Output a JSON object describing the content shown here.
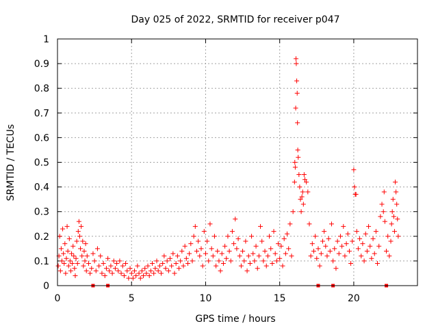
{
  "chart_data": {
    "type": "scatter",
    "title": "Day 025 of 2022, SRMTID for receiver p047",
    "xlabel": "GPS time / hours",
    "ylabel": "SRMTID / TECUs",
    "xlim": [
      0,
      24.3
    ],
    "ylim": [
      0,
      1
    ],
    "xticks": [
      0,
      5,
      10,
      15,
      20
    ],
    "yticks": [
      0,
      0.1,
      0.2,
      0.3,
      0.4,
      0.5,
      0.6,
      0.7,
      0.8,
      0.9,
      1
    ],
    "xtick_labels": [
      "0",
      "5",
      "10",
      "15",
      "20"
    ],
    "ytick_labels": [
      "0",
      "0.1",
      "0.2",
      "0.3",
      "0.4",
      "0.5",
      "0.6",
      "0.7",
      "0.8",
      "0.9",
      "1"
    ],
    "grid": true,
    "marker": "+",
    "color": "#ff0000",
    "baseline_markers_x": [
      2.4,
      3.4,
      17.6,
      18.6,
      22.2
    ],
    "series": [
      {
        "name": "SRMTID",
        "points": [
          [
            0.05,
            0.08
          ],
          [
            0.1,
            0.12
          ],
          [
            0.15,
            0.2
          ],
          [
            0.2,
            0.06
          ],
          [
            0.25,
            0.15
          ],
          [
            0.3,
            0.1
          ],
          [
            0.35,
            0.23
          ],
          [
            0.4,
            0.13
          ],
          [
            0.45,
            0.09
          ],
          [
            0.5,
            0.17
          ],
          [
            0.55,
            0.05
          ],
          [
            0.6,
            0.11
          ],
          [
            0.65,
            0.24
          ],
          [
            0.7,
            0.14
          ],
          [
            0.75,
            0.08
          ],
          [
            0.8,
            0.19
          ],
          [
            0.85,
            0.1
          ],
          [
            0.9,
            0.06
          ],
          [
            0.95,
            0.13
          ],
          [
            1.0,
            0.09
          ],
          [
            1.05,
            0.16
          ],
          [
            1.1,
            0.12
          ],
          [
            1.15,
            0.07
          ],
          [
            1.2,
            0.04
          ],
          [
            1.25,
            0.11
          ],
          [
            1.3,
            0.18
          ],
          [
            1.35,
            0.09
          ],
          [
            1.4,
            0.22
          ],
          [
            1.45,
            0.26
          ],
          [
            1.5,
            0.2
          ],
          [
            1.55,
            0.15
          ],
          [
            1.6,
            0.24
          ],
          [
            1.65,
            0.12
          ],
          [
            1.7,
            0.18
          ],
          [
            1.75,
            0.08
          ],
          [
            1.8,
            0.14
          ],
          [
            1.85,
            0.1
          ],
          [
            1.9,
            0.17
          ],
          [
            1.95,
            0.06
          ],
          [
            2.0,
            0.12
          ],
          [
            2.1,
            0.09
          ],
          [
            2.2,
            0.05
          ],
          [
            2.3,
            0.07
          ],
          [
            2.4,
            0.13
          ],
          [
            2.5,
            0.1
          ],
          [
            2.6,
            0.06
          ],
          [
            2.7,
            0.15
          ],
          [
            2.8,
            0.08
          ],
          [
            2.9,
            0.12
          ],
          [
            3.0,
            0.05
          ],
          [
            3.1,
            0.09
          ],
          [
            3.2,
            0.04
          ],
          [
            3.3,
            0.07
          ],
          [
            3.4,
            0.11
          ],
          [
            3.5,
            0.06
          ],
          [
            3.6,
            0.08
          ],
          [
            3.7,
            0.05
          ],
          [
            3.8,
            0.1
          ],
          [
            3.9,
            0.07
          ],
          [
            4.0,
            0.09
          ],
          [
            4.1,
            0.06
          ],
          [
            4.2,
            0.1
          ],
          [
            4.3,
            0.05
          ],
          [
            4.4,
            0.08
          ],
          [
            4.5,
            0.04
          ],
          [
            4.6,
            0.09
          ],
          [
            4.7,
            0.06
          ],
          [
            4.8,
            0.03
          ],
          [
            4.9,
            0.07
          ],
          [
            5.0,
            0.05
          ],
          [
            5.1,
            0.03
          ],
          [
            5.2,
            0.06
          ],
          [
            5.3,
            0.04
          ],
          [
            5.4,
            0.08
          ],
          [
            5.5,
            0.05
          ],
          [
            5.6,
            0.03
          ],
          [
            5.7,
            0.06
          ],
          [
            5.8,
            0.04
          ],
          [
            5.9,
            0.07
          ],
          [
            6.0,
            0.05
          ],
          [
            6.1,
            0.08
          ],
          [
            6.2,
            0.04
          ],
          [
            6.3,
            0.06
          ],
          [
            6.4,
            0.09
          ],
          [
            6.5,
            0.05
          ],
          [
            6.6,
            0.07
          ],
          [
            6.7,
            0.1
          ],
          [
            6.8,
            0.06
          ],
          [
            6.9,
            0.08
          ],
          [
            7.0,
            0.05
          ],
          [
            7.1,
            0.09
          ],
          [
            7.2,
            0.12
          ],
          [
            7.3,
            0.07
          ],
          [
            7.4,
            0.1
          ],
          [
            7.5,
            0.06
          ],
          [
            7.6,
            0.11
          ],
          [
            7.7,
            0.08
          ],
          [
            7.8,
            0.13
          ],
          [
            7.9,
            0.05
          ],
          [
            8.0,
            0.09
          ],
          [
            8.1,
            0.12
          ],
          [
            8.2,
            0.07
          ],
          [
            8.3,
            0.1
          ],
          [
            8.4,
            0.14
          ],
          [
            8.5,
            0.08
          ],
          [
            8.6,
            0.16
          ],
          [
            8.7,
            0.11
          ],
          [
            8.8,
            0.09
          ],
          [
            8.9,
            0.13
          ],
          [
            9.0,
            0.17
          ],
          [
            9.1,
            0.1
          ],
          [
            9.2,
            0.2
          ],
          [
            9.3,
            0.24
          ],
          [
            9.4,
            0.14
          ],
          [
            9.5,
            0.18
          ],
          [
            9.6,
            0.12
          ],
          [
            9.7,
            0.15
          ],
          [
            9.8,
            0.08
          ],
          [
            9.9,
            0.22
          ],
          [
            10.0,
            0.13
          ],
          [
            10.1,
            0.18
          ],
          [
            10.2,
            0.1
          ],
          [
            10.3,
            0.25
          ],
          [
            10.4,
            0.15
          ],
          [
            10.5,
            0.12
          ],
          [
            10.6,
            0.2
          ],
          [
            10.7,
            0.08
          ],
          [
            10.8,
            0.14
          ],
          [
            10.9,
            0.1
          ],
          [
            11.0,
            0.06
          ],
          [
            11.1,
            0.13
          ],
          [
            11.2,
            0.09
          ],
          [
            11.3,
            0.16
          ],
          [
            11.4,
            0.11
          ],
          [
            11.5,
            0.2
          ],
          [
            11.6,
            0.14
          ],
          [
            11.7,
            0.1
          ],
          [
            11.8,
            0.22
          ],
          [
            11.9,
            0.17
          ],
          [
            12.0,
            0.27
          ],
          [
            12.1,
            0.15
          ],
          [
            12.2,
            0.19
          ],
          [
            12.3,
            0.12
          ],
          [
            12.4,
            0.08
          ],
          [
            12.5,
            0.14
          ],
          [
            12.6,
            0.1
          ],
          [
            12.7,
            0.18
          ],
          [
            12.8,
            0.06
          ],
          [
            12.9,
            0.12
          ],
          [
            13.0,
            0.09
          ],
          [
            13.1,
            0.2
          ],
          [
            13.2,
            0.13
          ],
          [
            13.3,
            0.1
          ],
          [
            13.4,
            0.16
          ],
          [
            13.5,
            0.07
          ],
          [
            13.6,
            0.12
          ],
          [
            13.7,
            0.24
          ],
          [
            13.8,
            0.18
          ],
          [
            13.9,
            0.1
          ],
          [
            14.0,
            0.14
          ],
          [
            14.1,
            0.08
          ],
          [
            14.2,
            0.12
          ],
          [
            14.3,
            0.2
          ],
          [
            14.4,
            0.15
          ],
          [
            14.5,
            0.09
          ],
          [
            14.6,
            0.22
          ],
          [
            14.7,
            0.13
          ],
          [
            14.8,
            0.1
          ],
          [
            14.9,
            0.17
          ],
          [
            15.0,
            0.11
          ],
          [
            15.1,
            0.16
          ],
          [
            15.2,
            0.08
          ],
          [
            15.3,
            0.19
          ],
          [
            15.4,
            0.13
          ],
          [
            15.5,
            0.21
          ],
          [
            15.6,
            0.15
          ],
          [
            15.7,
            0.25
          ],
          [
            15.8,
            0.12
          ],
          [
            15.9,
            0.3
          ],
          [
            16.0,
            0.42
          ],
          [
            16.02,
            0.5
          ],
          [
            16.05,
            0.48
          ],
          [
            16.08,
            0.72
          ],
          [
            16.1,
            0.92
          ],
          [
            16.12,
            0.9
          ],
          [
            16.15,
            0.83
          ],
          [
            16.18,
            0.78
          ],
          [
            16.2,
            0.66
          ],
          [
            16.22,
            0.55
          ],
          [
            16.25,
            0.52
          ],
          [
            16.3,
            0.45
          ],
          [
            16.35,
            0.4
          ],
          [
            16.4,
            0.35
          ],
          [
            16.45,
            0.3
          ],
          [
            16.5,
            0.36
          ],
          [
            16.55,
            0.38
          ],
          [
            16.6,
            0.33
          ],
          [
            16.65,
            0.45
          ],
          [
            16.7,
            0.43
          ],
          [
            16.8,
            0.42
          ],
          [
            16.9,
            0.38
          ],
          [
            17.0,
            0.25
          ],
          [
            17.1,
            0.12
          ],
          [
            17.2,
            0.17
          ],
          [
            17.3,
            0.14
          ],
          [
            17.4,
            0.2
          ],
          [
            17.5,
            0.11
          ],
          [
            17.6,
            0.15
          ],
          [
            17.7,
            0.08
          ],
          [
            17.8,
            0.13
          ],
          [
            17.9,
            0.18
          ],
          [
            18.0,
            0.22
          ],
          [
            18.1,
            0.16
          ],
          [
            18.2,
            0.12
          ],
          [
            18.3,
            0.19
          ],
          [
            18.4,
            0.14
          ],
          [
            18.5,
            0.25
          ],
          [
            18.6,
            0.1
          ],
          [
            18.7,
            0.15
          ],
          [
            18.8,
            0.07
          ],
          [
            18.9,
            0.18
          ],
          [
            19.0,
            0.13
          ],
          [
            19.1,
            0.2
          ],
          [
            19.2,
            0.16
          ],
          [
            19.3,
            0.24
          ],
          [
            19.4,
            0.12
          ],
          [
            19.5,
            0.17
          ],
          [
            19.6,
            0.21
          ],
          [
            19.7,
            0.14
          ],
          [
            19.8,
            0.09
          ],
          [
            19.9,
            0.18
          ],
          [
            20.0,
            0.47
          ],
          [
            20.05,
            0.4
          ],
          [
            20.1,
            0.37
          ],
          [
            20.15,
            0.37
          ],
          [
            20.2,
            0.22
          ],
          [
            20.3,
            0.15
          ],
          [
            20.4,
            0.19
          ],
          [
            20.5,
            0.12
          ],
          [
            20.6,
            0.17
          ],
          [
            20.7,
            0.1
          ],
          [
            20.8,
            0.21
          ],
          [
            20.9,
            0.14
          ],
          [
            21.0,
            0.24
          ],
          [
            21.1,
            0.16
          ],
          [
            21.2,
            0.11
          ],
          [
            21.3,
            0.19
          ],
          [
            21.4,
            0.13
          ],
          [
            21.5,
            0.22
          ],
          [
            21.6,
            0.09
          ],
          [
            21.7,
            0.16
          ],
          [
            21.8,
            0.28
          ],
          [
            21.9,
            0.33
          ],
          [
            22.0,
            0.3
          ],
          [
            22.05,
            0.38
          ],
          [
            22.1,
            0.26
          ],
          [
            22.2,
            0.14
          ],
          [
            22.3,
            0.2
          ],
          [
            22.4,
            0.12
          ],
          [
            22.5,
            0.18
          ],
          [
            22.55,
            0.25
          ],
          [
            22.6,
            0.3
          ],
          [
            22.65,
            0.35
          ],
          [
            22.7,
            0.28
          ],
          [
            22.75,
            0.22
          ],
          [
            22.8,
            0.42
          ],
          [
            22.85,
            0.38
          ],
          [
            22.9,
            0.33
          ],
          [
            22.95,
            0.27
          ],
          [
            23.0,
            0.2
          ]
        ]
      }
    ]
  }
}
